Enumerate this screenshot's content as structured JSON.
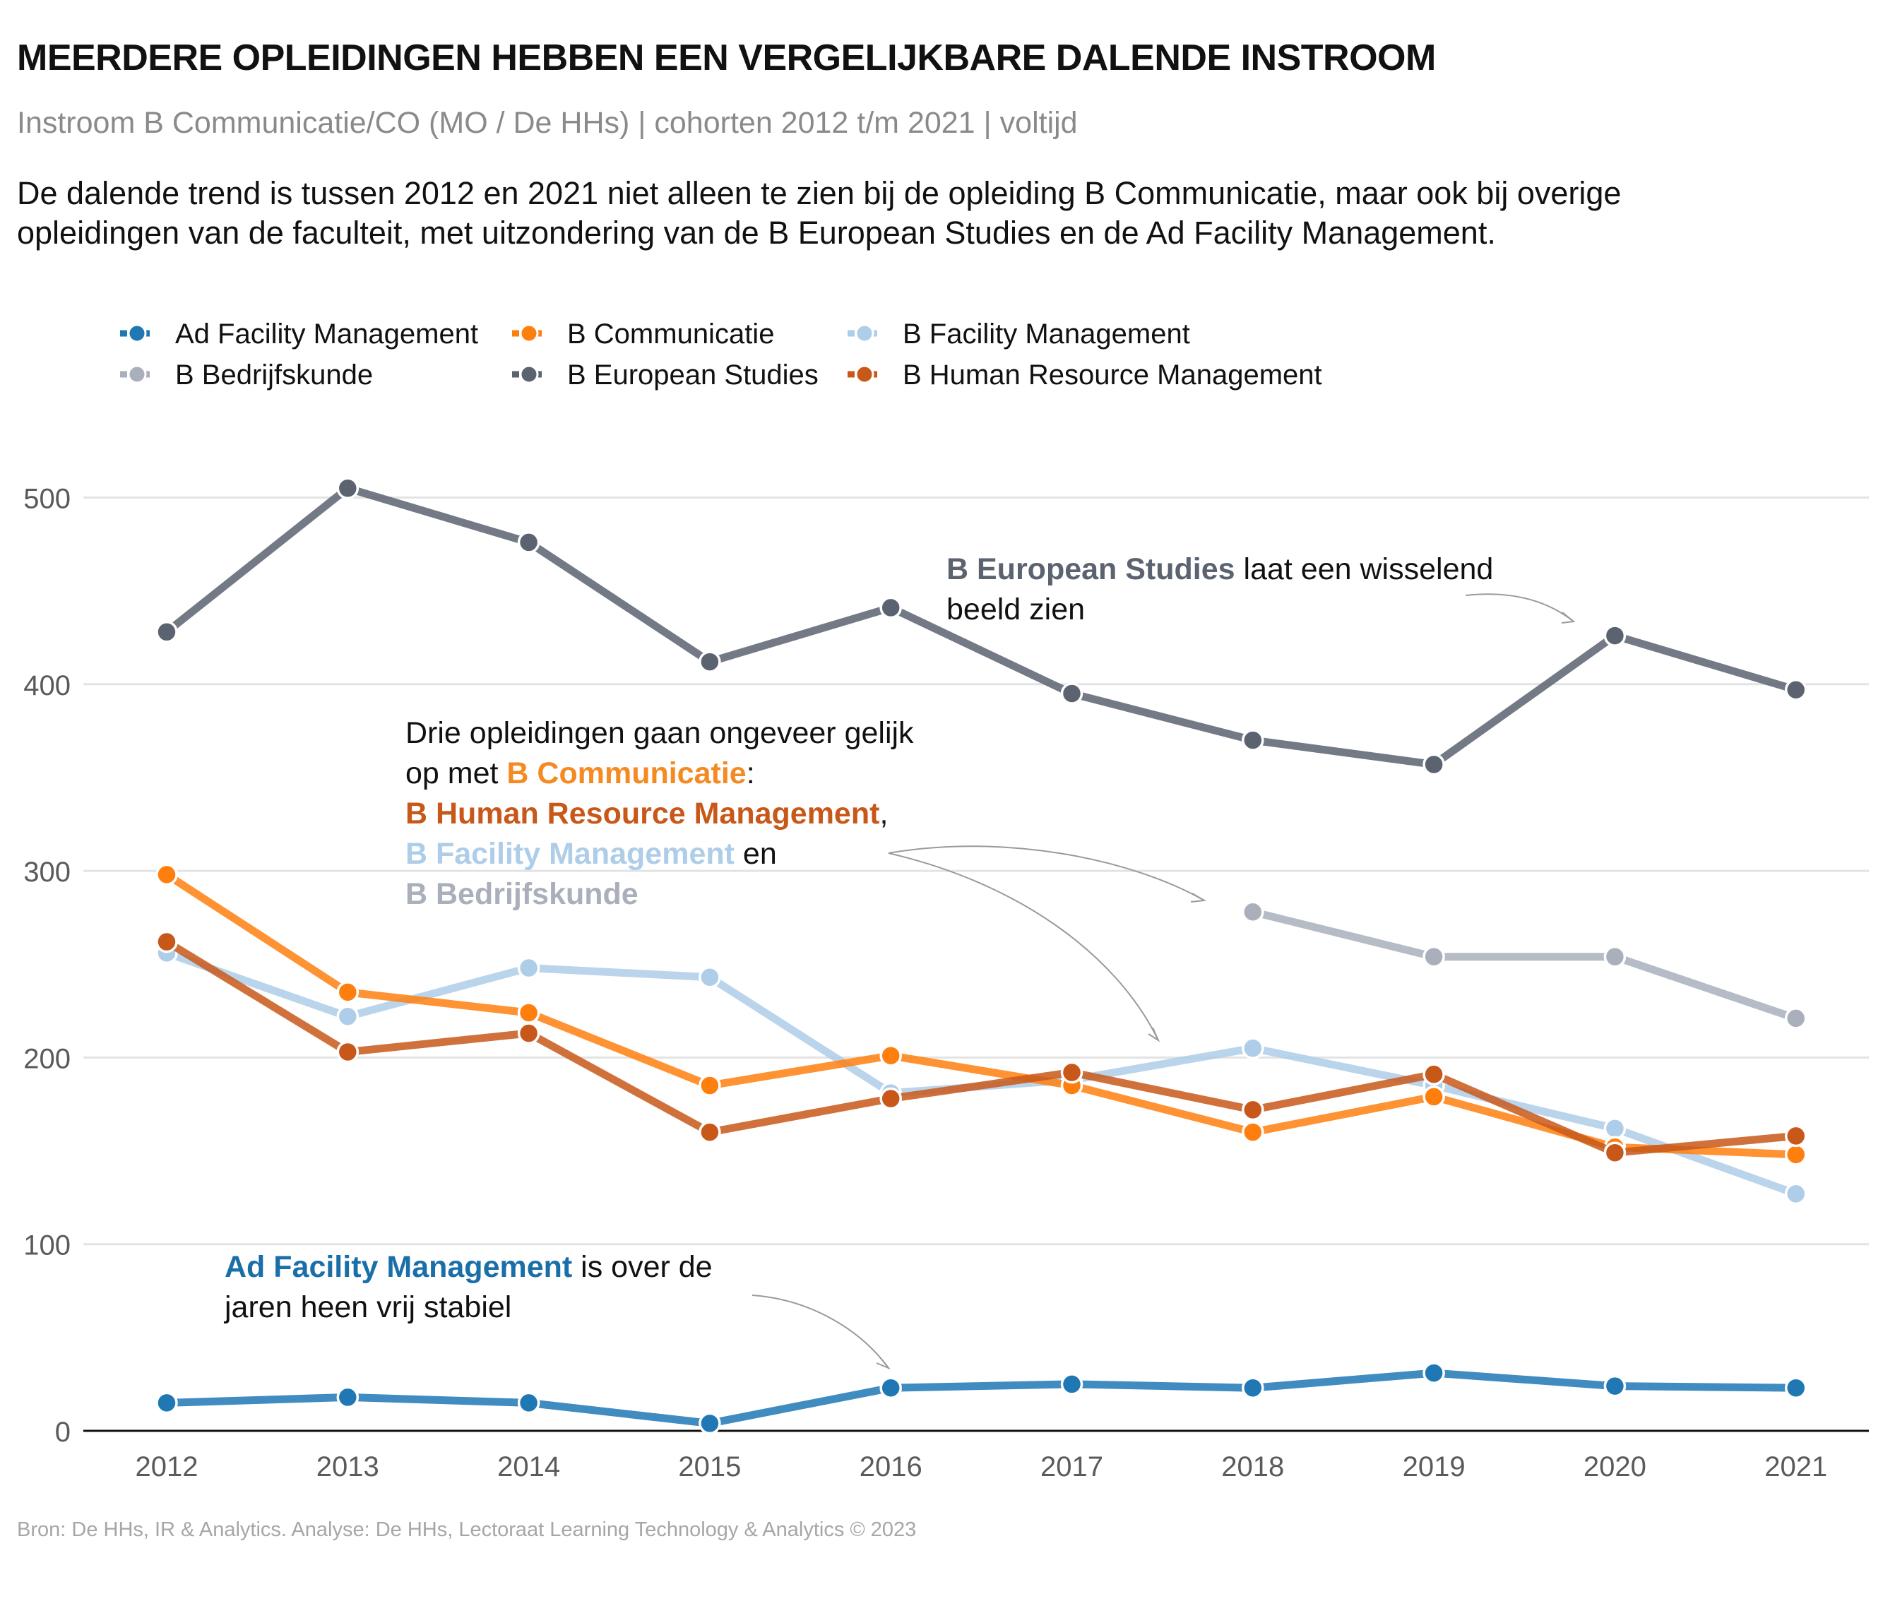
{
  "title": "MEERDERE OPLEIDINGEN HEBBEN EEN VERGELIJKBARE DALENDE INSTROOM",
  "subtitle": "Instroom B Communicatie/CO (MO / De HHs) | cohorten 2012 t/m 2021 | voltijd",
  "intro_line1": "De dalende trend is tussen 2012 en 2021 niet alleen te zien bij de opleiding B Communicatie, maar ook bij overige",
  "intro_line2": "opleidingen van de faculteit, met uitzondering van de B European Studies en de Ad Facility Management.",
  "source": "Bron: De HHs, IR & Analytics. Analyse: De HHs, Lectoraat Learning Technology & Analytics © 2023",
  "annotations": {
    "es": {
      "bold": "B European Studies",
      "rest1": " laat een wisselend",
      "line2": "beeld zien",
      "color": "#5b6370"
    },
    "three": {
      "line1": "Drie opleidingen gaan ongeveer gelijk",
      "line2_pre": "op met ",
      "comm": "B Communicatie",
      "colon": ":",
      "hrm": "B Human Resource Management",
      "comma": ",",
      "fm": "B Facility Management",
      "en": " en",
      "bk": "B Bedrijfskunde"
    },
    "ad": {
      "bold": "Ad Facility Management",
      "rest1": " is over de",
      "line2": "jaren heen vrij stabiel"
    }
  },
  "chart_data": {
    "type": "line",
    "x": [
      2012,
      2013,
      2014,
      2015,
      2016,
      2017,
      2018,
      2019,
      2020,
      2021
    ],
    "ylim": [
      0,
      520
    ],
    "yticks": [
      0,
      100,
      200,
      300,
      400,
      500
    ],
    "grid": true,
    "legend_position": "top-left",
    "series": [
      {
        "name": "Ad Facility Management",
        "color": "#1f77b4",
        "values": [
          15,
          18,
          15,
          4,
          23,
          25,
          23,
          31,
          24,
          23
        ]
      },
      {
        "name": "B Communicatie",
        "color": "#ff7f0e",
        "values": [
          298,
          235,
          224,
          185,
          201,
          185,
          160,
          179,
          152,
          148
        ]
      },
      {
        "name": "B Facility Management",
        "color": "#aecde8",
        "values": [
          256,
          222,
          248,
          243,
          181,
          188,
          205,
          185,
          162,
          127
        ]
      },
      {
        "name": "B Bedrijfskunde",
        "color": "#a9b0bb",
        "values": [
          null,
          null,
          null,
          null,
          null,
          null,
          278,
          254,
          254,
          221
        ]
      },
      {
        "name": "B European Studies",
        "color": "#5b6370",
        "values": [
          428,
          505,
          476,
          412,
          441,
          395,
          370,
          357,
          426,
          397
        ]
      },
      {
        "name": "B Human Resource Management",
        "color": "#c8581a",
        "values": [
          262,
          203,
          213,
          160,
          178,
          192,
          172,
          191,
          149,
          158
        ]
      }
    ]
  }
}
